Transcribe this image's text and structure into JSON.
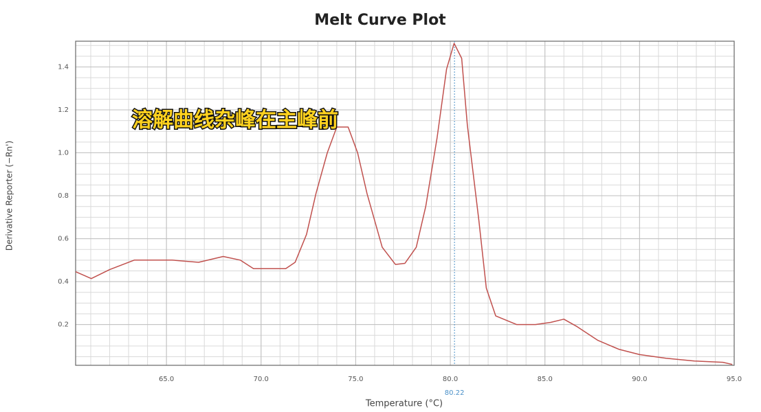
{
  "chart_data": {
    "type": "line",
    "title": "Melt Curve Plot",
    "x_label": "Temperature (°C)",
    "y_label": "Derivative Reporter (−Rn')",
    "annotation": "溶解曲线杂峰在主峰前",
    "xlim": [
      60.2,
      95
    ],
    "ylim": [
      0.01,
      1.52
    ],
    "xticks": [
      {
        "value": 65,
        "label": "65.0"
      },
      {
        "value": 70,
        "label": "70.0"
      },
      {
        "value": 75,
        "label": "75.0"
      },
      {
        "value": 80,
        "label": "80.0"
      },
      {
        "value": 85,
        "label": "85.0"
      },
      {
        "value": 90,
        "label": "90.0"
      },
      {
        "value": 95,
        "label": "95.0"
      }
    ],
    "yticks": [
      0.2,
      0.4,
      0.6,
      0.8,
      {
        "value": 1,
        "label": "1.0"
      },
      1.2,
      1.4
    ],
    "grid": true,
    "minor_grid": {
      "x": 1,
      "y": 0.05
    },
    "marker": {
      "x": 80.22,
      "color": "#4a90c8"
    },
    "series": [
      {
        "color": "#c0504d",
        "x": [
          60.2,
          61.03,
          62.0,
          63.3,
          64.2,
          65.3,
          66.7,
          68.0,
          68.9,
          69.6,
          71.3,
          71.8,
          72.4,
          72.9,
          73.5,
          74.0,
          74.6,
          75.1,
          75.6,
          76.4,
          77.1,
          77.6,
          78.2,
          78.7,
          79.3,
          79.8,
          80.2,
          80.6,
          80.9,
          81.5,
          81.9,
          82.4,
          83.5,
          84.5,
          85.3,
          86.0,
          86.7,
          87.8,
          88.9,
          90.0,
          91.4,
          92.9,
          94.4,
          94.9
        ],
        "values": [
          0.446,
          0.414,
          0.456,
          0.5,
          0.5,
          0.5,
          0.49,
          0.517,
          0.5,
          0.46,
          0.46,
          0.49,
          0.62,
          0.81,
          1.0,
          1.12,
          1.12,
          1.0,
          0.81,
          0.56,
          0.48,
          0.485,
          0.56,
          0.75,
          1.07,
          1.39,
          1.51,
          1.44,
          1.13,
          0.69,
          0.37,
          0.24,
          0.2,
          0.2,
          0.21,
          0.225,
          0.19,
          0.126,
          0.085,
          0.06,
          0.043,
          0.03,
          0.024,
          0.014
        ]
      }
    ]
  }
}
